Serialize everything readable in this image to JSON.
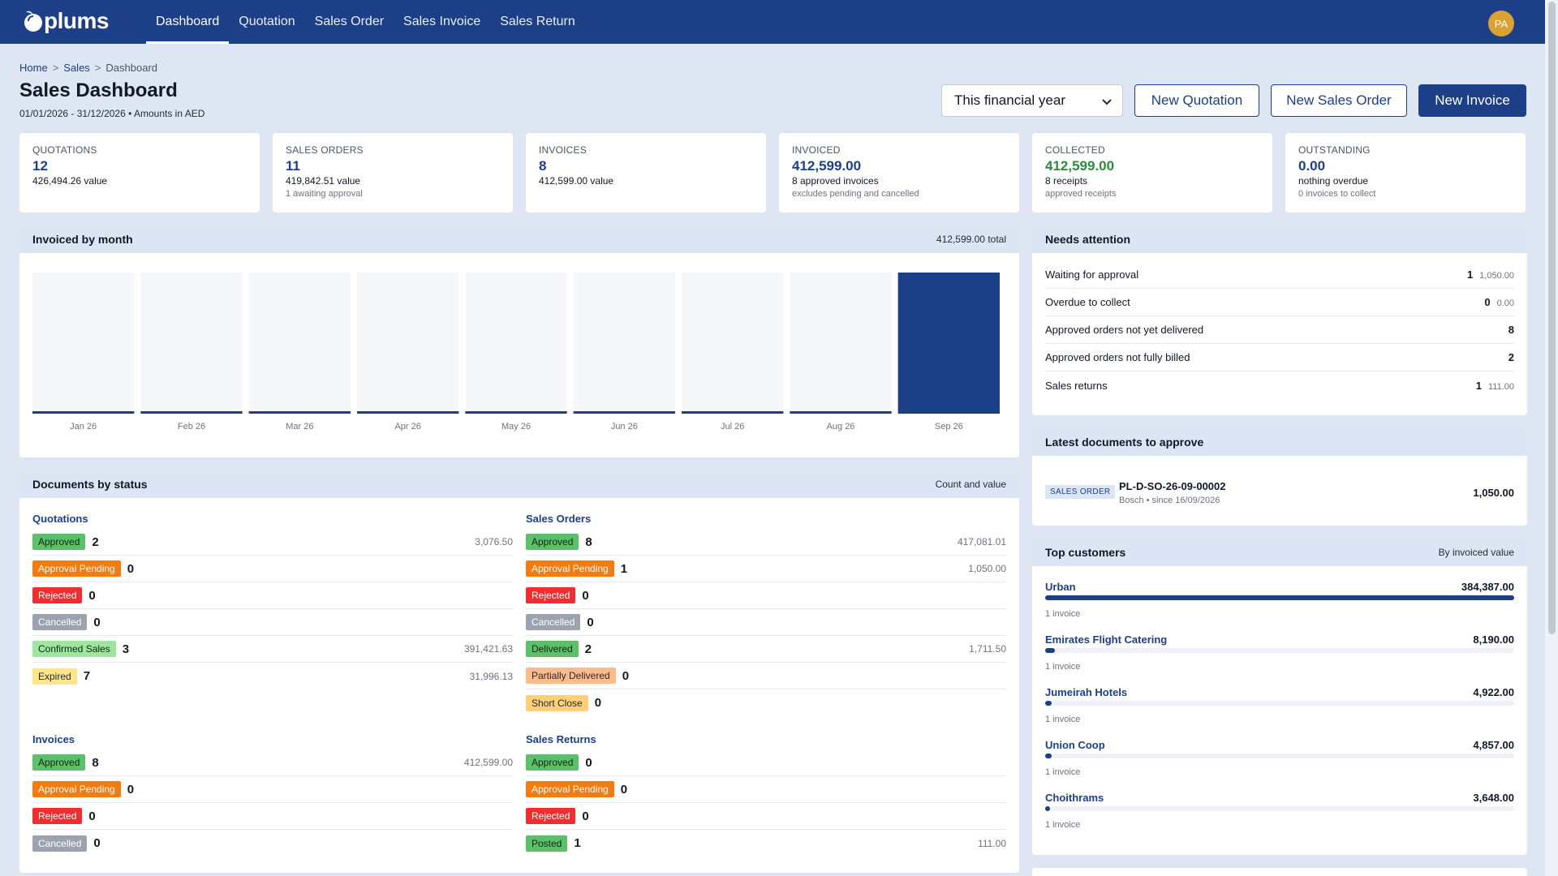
{
  "brand": {
    "name": "plums"
  },
  "nav": [
    "Dashboard",
    "Quotation",
    "Sales Order",
    "Sales Invoice",
    "Sales Return"
  ],
  "user": {
    "initials": "PA"
  },
  "breadcrumb": [
    "Home",
    "Sales",
    "Dashboard"
  ],
  "page": {
    "title": "Sales Dashboard",
    "subtitle": "01/01/2026 - 31/12/2026 • Amounts in AED"
  },
  "period": {
    "selected": "This financial year"
  },
  "actions": {
    "new_quotation": "New Quotation",
    "new_sales_order": "New Sales Order",
    "new_invoice": "New Invoice"
  },
  "kpis": [
    {
      "label": "QUOTATIONS",
      "value": "12",
      "line": "426,494.26 value",
      "note": ""
    },
    {
      "label": "SALES ORDERS",
      "value": "11",
      "line": "419,842.51 value",
      "note": "1 awaiting approval"
    },
    {
      "label": "INVOICES",
      "value": "8",
      "line": "412,599.00 value",
      "note": ""
    },
    {
      "label": "INVOICED",
      "value": "412,599.00",
      "line": "8 approved invoices",
      "note": "excludes pending and cancelled"
    },
    {
      "label": "COLLECTED",
      "value": "412,599.00",
      "line": "8 receipts",
      "note": "approved receipts"
    },
    {
      "label": "OUTSTANDING",
      "value": "0.00",
      "line": "nothing overdue",
      "note": "0 invoices to collect"
    }
  ],
  "chart_panel": {
    "title": "Invoiced by month",
    "meta": "412,599.00 total"
  },
  "chart_data": {
    "type": "bar",
    "title": "Invoiced by month",
    "categories": [
      "Jan 26",
      "Feb 26",
      "Mar 26",
      "Apr 26",
      "May 26",
      "Jun 26",
      "Jul 26",
      "Aug 26",
      "Sep 26"
    ],
    "values": [
      0,
      0,
      0,
      0,
      0,
      0,
      0,
      0,
      412599
    ],
    "ylim": [
      0,
      412599
    ],
    "grid": false,
    "colors": {
      "bar": "#1c3f87",
      "track": "#f5f7fb"
    }
  },
  "docs_panel": {
    "title": "Documents by status",
    "meta": "Count and value"
  },
  "doc_groups": {
    "quotations": {
      "title": "Quotations",
      "rows": [
        {
          "status": "Approved",
          "count": "2",
          "value": "3,076.50",
          "bg": "#5cc06a",
          "fg": "#0d2a12"
        },
        {
          "status": "Approval Pending",
          "count": "0",
          "value": "",
          "bg": "#f57c0c",
          "fg": "#ffffff"
        },
        {
          "status": "Rejected",
          "count": "0",
          "value": "",
          "bg": "#ef2f2f",
          "fg": "#ffffff"
        },
        {
          "status": "Cancelled",
          "count": "0",
          "value": "",
          "bg": "#9ca3af",
          "fg": "#ffffff"
        },
        {
          "status": "Confirmed Sales",
          "count": "3",
          "value": "391,421.63",
          "bg": "#9ee69e",
          "fg": "#0d2a12"
        },
        {
          "status": "Expired",
          "count": "7",
          "value": "31,996.13",
          "bg": "#fde68a",
          "fg": "#1f2937"
        }
      ]
    },
    "sales_orders": {
      "title": "Sales Orders",
      "rows": [
        {
          "status": "Approved",
          "count": "8",
          "value": "417,081.01",
          "bg": "#5cc06a",
          "fg": "#0d2a12"
        },
        {
          "status": "Approval Pending",
          "count": "1",
          "value": "1,050.00",
          "bg": "#f57c0c",
          "fg": "#ffffff"
        },
        {
          "status": "Rejected",
          "count": "0",
          "value": "",
          "bg": "#ef2f2f",
          "fg": "#ffffff"
        },
        {
          "status": "Cancelled",
          "count": "0",
          "value": "",
          "bg": "#9ca3af",
          "fg": "#ffffff"
        },
        {
          "status": "Delivered",
          "count": "2",
          "value": "1,711.50",
          "bg": "#5cc06a",
          "fg": "#0d2a12"
        },
        {
          "status": "Partially Delivered",
          "count": "0",
          "value": "",
          "bg": "#fdba8c",
          "fg": "#1f2937"
        },
        {
          "status": "Short Close",
          "count": "0",
          "value": "",
          "bg": "#fcd07a",
          "fg": "#1f2937"
        }
      ]
    },
    "invoices": {
      "title": "Invoices",
      "rows": [
        {
          "status": "Approved",
          "count": "8",
          "value": "412,599.00",
          "bg": "#5cc06a",
          "fg": "#0d2a12"
        },
        {
          "status": "Approval Pending",
          "count": "0",
          "value": "",
          "bg": "#f57c0c",
          "fg": "#ffffff"
        },
        {
          "status": "Rejected",
          "count": "0",
          "value": "",
          "bg": "#ef2f2f",
          "fg": "#ffffff"
        },
        {
          "status": "Cancelled",
          "count": "0",
          "value": "",
          "bg": "#9ca3af",
          "fg": "#ffffff"
        }
      ]
    },
    "sales_returns": {
      "title": "Sales Returns",
      "rows": [
        {
          "status": "Approved",
          "count": "0",
          "value": "",
          "bg": "#5cc06a",
          "fg": "#0d2a12"
        },
        {
          "status": "Approval Pending",
          "count": "0",
          "value": "",
          "bg": "#f57c0c",
          "fg": "#ffffff"
        },
        {
          "status": "Rejected",
          "count": "0",
          "value": "",
          "bg": "#ef2f2f",
          "fg": "#ffffff"
        },
        {
          "status": "Posted",
          "count": "1",
          "value": "111.00",
          "bg": "#5cc06a",
          "fg": "#0d2a12"
        }
      ]
    }
  },
  "attention": {
    "title": "Needs attention",
    "rows": [
      {
        "label": "Waiting for approval",
        "count": "1",
        "amount": "1,050.00"
      },
      {
        "label": "Overdue to collect",
        "count": "0",
        "amount": "0.00"
      },
      {
        "label": "Approved orders not yet delivered",
        "count": "8",
        "amount": ""
      },
      {
        "label": "Approved orders not fully billed",
        "count": "2",
        "amount": ""
      },
      {
        "label": "Sales returns",
        "count": "1",
        "amount": "111.00"
      }
    ]
  },
  "latest": {
    "title": "Latest documents to approve",
    "doc": {
      "type": "SALES ORDER",
      "number": "PL-D-SO-26-09-00002",
      "sub": "Bosch • since 16/09/2026",
      "amount": "1,050.00"
    }
  },
  "customers": {
    "title": "Top customers",
    "meta": "By invoiced value",
    "rows": [
      {
        "name": "Urban",
        "value": "384,387.00",
        "share": 1.0,
        "note": "1 invoice"
      },
      {
        "name": "Emirates Flight Catering",
        "value": "8,190.00",
        "share": 0.021,
        "note": "1 invoice"
      },
      {
        "name": "Jumeirah Hotels",
        "value": "4,922.00",
        "share": 0.013,
        "note": "1 invoice"
      },
      {
        "name": "Union Coop",
        "value": "4,857.00",
        "share": 0.013,
        "note": "1 invoice"
      },
      {
        "name": "Choithrams",
        "value": "3,648.00",
        "share": 0.009,
        "note": "1 invoice"
      }
    ]
  }
}
